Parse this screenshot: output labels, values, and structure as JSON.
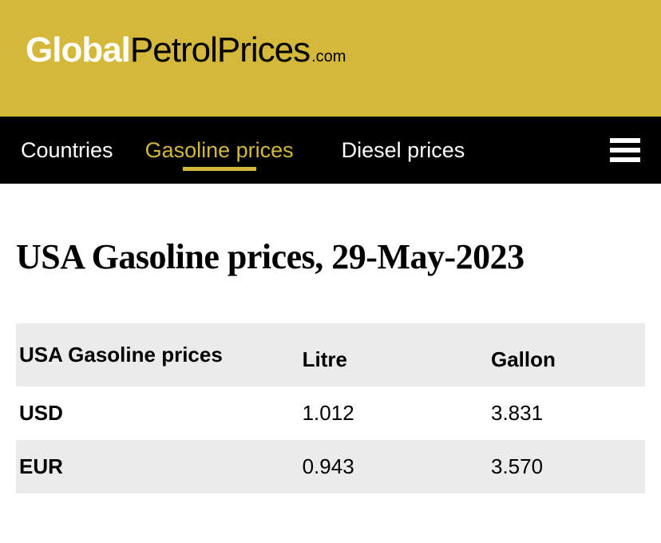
{
  "colors": {
    "header_bg": "#d4b83a",
    "nav_bg": "#000000",
    "active_color": "#d4b83a",
    "table_header_bg": "#ebebeb",
    "table_stripe_bg": "#ebebeb"
  },
  "logo": {
    "part1": "Global",
    "part2": "PetrolPrices",
    "part3": ".com"
  },
  "nav": {
    "items": [
      {
        "label": "Countries",
        "active": false
      },
      {
        "label": "Gasoline prices",
        "active": true
      },
      {
        "label": "Diesel prices",
        "active": false
      }
    ]
  },
  "page": {
    "title": "USA Gasoline prices, 29-May-2023"
  },
  "price_table": {
    "columns": [
      "USA Gasoline prices",
      "Litre",
      "Gallon"
    ],
    "rows": [
      {
        "currency": "USD",
        "litre": "1.012",
        "gallon": "3.831"
      },
      {
        "currency": "EUR",
        "litre": "0.943",
        "gallon": "3.570"
      }
    ]
  }
}
